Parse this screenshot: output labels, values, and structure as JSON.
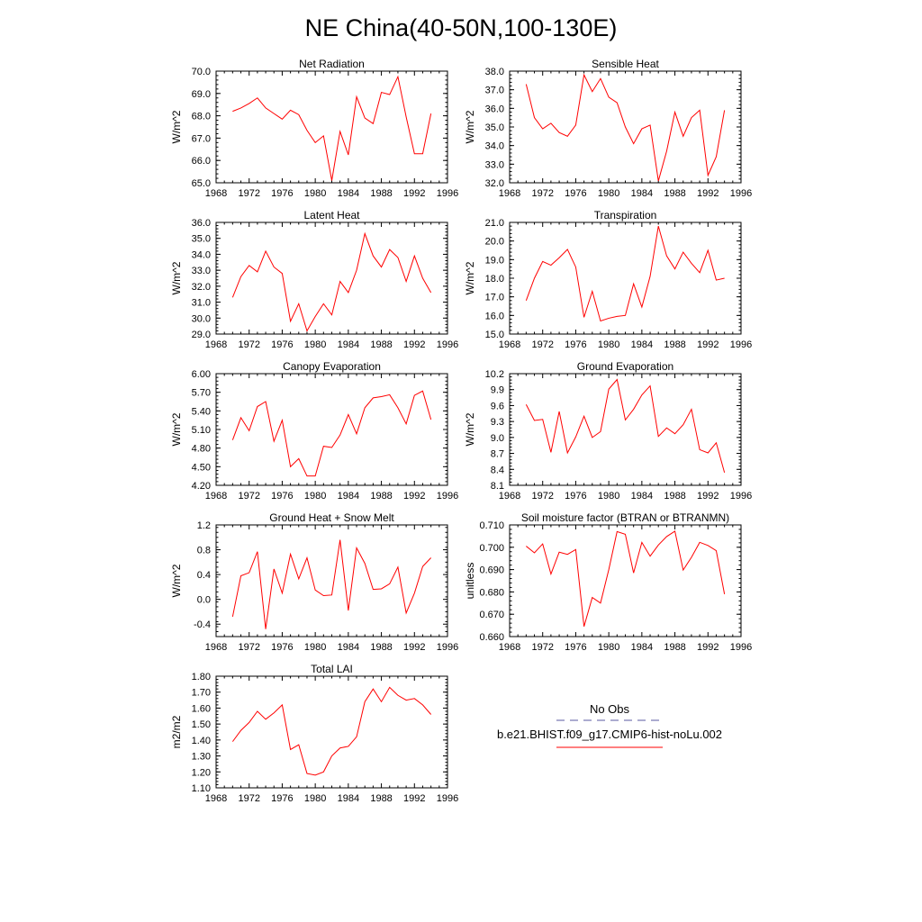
{
  "page_title": "NE China(40-50N,100-130E)",
  "colors": {
    "model_line": "#ff0000",
    "obs_line": "#5a5aa0",
    "axis": "#000000"
  },
  "legend": {
    "obs_label": "No Obs",
    "model_label": "b.e21.BHIST.f09_g17.CMIP6-hist-noLu.002"
  },
  "chart_data": [
    {
      "type": "line",
      "title": "Net Radiation",
      "ylabel": "W/m^2",
      "xlim": [
        1968,
        1996
      ],
      "xticks": [
        "1968",
        "1972",
        "1976",
        "1980",
        "1984",
        "1988",
        "1992",
        "1996"
      ],
      "ylim": [
        65.0,
        70.0
      ],
      "yticks": [
        "65.0",
        "66.0",
        "67.0",
        "68.0",
        "69.0",
        "70.0"
      ],
      "x": [
        1970,
        1971,
        1972,
        1973,
        1974,
        1975,
        1976,
        1977,
        1978,
        1979,
        1980,
        1981,
        1982,
        1983,
        1984,
        1985,
        1986,
        1987,
        1988,
        1989,
        1990,
        1991,
        1992,
        1993,
        1994
      ],
      "series": [
        {
          "name": "b.e21.BHIST.f09_g17.CMIP6-hist-noLu.002",
          "values": [
            68.2,
            68.35,
            68.55,
            68.8,
            68.35,
            68.1,
            67.85,
            68.25,
            68.05,
            67.35,
            66.8,
            67.1,
            65.1,
            67.3,
            66.25,
            68.85,
            67.9,
            67.65,
            69.05,
            68.95,
            69.75,
            67.95,
            66.3,
            66.3,
            68.1
          ]
        }
      ]
    },
    {
      "type": "line",
      "title": "Sensible Heat",
      "ylabel": "W/m^2",
      "xlim": [
        1968,
        1996
      ],
      "xticks": [
        "1968",
        "1972",
        "1976",
        "1980",
        "1984",
        "1988",
        "1992",
        "1996"
      ],
      "ylim": [
        32.0,
        38.0
      ],
      "yticks": [
        "32.0",
        "33.0",
        "34.0",
        "35.0",
        "36.0",
        "37.0",
        "38.0"
      ],
      "x": [
        1970,
        1971,
        1972,
        1973,
        1974,
        1975,
        1976,
        1977,
        1978,
        1979,
        1980,
        1981,
        1982,
        1983,
        1984,
        1985,
        1986,
        1987,
        1988,
        1989,
        1990,
        1991,
        1992,
        1993,
        1994
      ],
      "series": [
        {
          "name": "b.e21.BHIST.f09_g17.CMIP6-hist-noLu.002",
          "values": [
            37.3,
            35.5,
            34.9,
            35.2,
            34.7,
            34.5,
            35.1,
            37.8,
            36.9,
            37.6,
            36.6,
            36.3,
            35.0,
            34.1,
            34.9,
            35.1,
            32.1,
            33.7,
            35.8,
            34.5,
            35.5,
            35.9,
            32.4,
            33.4,
            35.9
          ]
        }
      ]
    },
    {
      "type": "line",
      "title": "Latent Heat",
      "ylabel": "W/m^2",
      "xlim": [
        1968,
        1996
      ],
      "xticks": [
        "1968",
        "1972",
        "1976",
        "1980",
        "1984",
        "1988",
        "1992",
        "1996"
      ],
      "ylim": [
        29.0,
        36.0
      ],
      "yticks": [
        "29.0",
        "30.0",
        "31.0",
        "32.0",
        "33.0",
        "34.0",
        "35.0",
        "36.0"
      ],
      "x": [
        1970,
        1971,
        1972,
        1973,
        1974,
        1975,
        1976,
        1977,
        1978,
        1979,
        1980,
        1981,
        1982,
        1983,
        1984,
        1985,
        1986,
        1987,
        1988,
        1989,
        1990,
        1991,
        1992,
        1993,
        1994
      ],
      "series": [
        {
          "name": "b.e21.BHIST.f09_g17.CMIP6-hist-noLu.002",
          "values": [
            31.3,
            32.6,
            33.3,
            32.9,
            34.2,
            33.2,
            32.8,
            29.8,
            30.9,
            29.2,
            30.1,
            30.9,
            30.2,
            32.3,
            31.6,
            33.0,
            35.3,
            33.9,
            33.2,
            34.3,
            33.8,
            32.3,
            33.9,
            32.5,
            31.6
          ]
        }
      ]
    },
    {
      "type": "line",
      "title": "Transpiration",
      "ylabel": "W/m^2",
      "xlim": [
        1968,
        1996
      ],
      "xticks": [
        "1968",
        "1972",
        "1976",
        "1980",
        "1984",
        "1988",
        "1992",
        "1996"
      ],
      "ylim": [
        15.0,
        21.0
      ],
      "yticks": [
        "15.0",
        "16.0",
        "17.0",
        "18.0",
        "19.0",
        "20.0",
        "21.0"
      ],
      "x": [
        1970,
        1971,
        1972,
        1973,
        1974,
        1975,
        1976,
        1977,
        1978,
        1979,
        1980,
        1981,
        1982,
        1983,
        1984,
        1985,
        1986,
        1987,
        1988,
        1989,
        1990,
        1991,
        1992,
        1993,
        1994
      ],
      "series": [
        {
          "name": "b.e21.BHIST.f09_g17.CMIP6-hist-noLu.002",
          "values": [
            16.8,
            18.0,
            18.9,
            18.7,
            19.1,
            19.55,
            18.6,
            15.9,
            17.3,
            15.7,
            15.85,
            15.95,
            16.0,
            17.7,
            16.45,
            18.1,
            20.8,
            19.2,
            18.5,
            19.4,
            18.8,
            18.3,
            19.5,
            17.9,
            18.0
          ]
        }
      ]
    },
    {
      "type": "line",
      "title": "Canopy Evaporation",
      "ylabel": "W/m^2",
      "xlim": [
        1968,
        1996
      ],
      "xticks": [
        "1968",
        "1972",
        "1976",
        "1980",
        "1984",
        "1988",
        "1992",
        "1996"
      ],
      "ylim": [
        4.2,
        6.0
      ],
      "yticks": [
        "4.20",
        "4.50",
        "4.80",
        "5.10",
        "5.40",
        "5.70",
        "6.00"
      ],
      "x": [
        1970,
        1971,
        1972,
        1973,
        1974,
        1975,
        1976,
        1977,
        1978,
        1979,
        1980,
        1981,
        1982,
        1983,
        1984,
        1985,
        1986,
        1987,
        1988,
        1989,
        1990,
        1991,
        1992,
        1993,
        1994
      ],
      "series": [
        {
          "name": "b.e21.BHIST.f09_g17.CMIP6-hist-noLu.002",
          "values": [
            4.93,
            5.29,
            5.08,
            5.47,
            5.55,
            4.91,
            5.25,
            4.5,
            4.63,
            4.35,
            4.35,
            4.83,
            4.81,
            5.01,
            5.34,
            5.03,
            5.45,
            5.61,
            5.63,
            5.66,
            5.45,
            5.19,
            5.65,
            5.72,
            5.26
          ]
        }
      ]
    },
    {
      "type": "line",
      "title": "Ground Evaporation",
      "ylabel": "W/m^2",
      "xlim": [
        1968,
        1996
      ],
      "xticks": [
        "1968",
        "1972",
        "1976",
        "1980",
        "1984",
        "1988",
        "1992",
        "1996"
      ],
      "ylim": [
        8.1,
        10.2
      ],
      "yticks": [
        "8.1",
        "8.4",
        "8.7",
        "9.0",
        "9.3",
        "9.6",
        "9.9",
        "10.2"
      ],
      "x": [
        1970,
        1971,
        1972,
        1973,
        1974,
        1975,
        1976,
        1977,
        1978,
        1979,
        1980,
        1981,
        1982,
        1983,
        1984,
        1985,
        1986,
        1987,
        1988,
        1989,
        1990,
        1991,
        1992,
        1993,
        1994
      ],
      "series": [
        {
          "name": "b.e21.BHIST.f09_g17.CMIP6-hist-noLu.002",
          "values": [
            9.62,
            9.32,
            9.34,
            8.72,
            9.49,
            8.71,
            9.01,
            9.4,
            9.0,
            9.11,
            9.91,
            10.09,
            9.33,
            9.53,
            9.8,
            9.97,
            9.02,
            9.18,
            9.07,
            9.24,
            9.53,
            8.77,
            8.71,
            8.9,
            8.34
          ]
        }
      ]
    },
    {
      "type": "line",
      "title": "Ground Heat + Snow Melt",
      "ylabel": "W/m^2",
      "xlim": [
        1968,
        1996
      ],
      "xticks": [
        "1968",
        "1972",
        "1976",
        "1980",
        "1984",
        "1988",
        "1992",
        "1996"
      ],
      "ylim": [
        -0.6,
        1.2
      ],
      "yticks": [
        "-0.4",
        "0.0",
        "0.4",
        "0.8",
        "1.2"
      ],
      "ytick_values": [
        -0.4,
        0.0,
        0.4,
        0.8,
        1.2
      ],
      "x": [
        1970,
        1971,
        1972,
        1973,
        1974,
        1975,
        1976,
        1977,
        1978,
        1979,
        1980,
        1981,
        1982,
        1983,
        1984,
        1985,
        1986,
        1987,
        1988,
        1989,
        1990,
        1991,
        1992,
        1993,
        1994
      ],
      "series": [
        {
          "name": "b.e21.BHIST.f09_g17.CMIP6-hist-noLu.002",
          "values": [
            -0.28,
            0.38,
            0.43,
            0.77,
            -0.48,
            0.49,
            0.1,
            0.73,
            0.33,
            0.67,
            0.15,
            0.06,
            0.07,
            0.96,
            -0.18,
            0.83,
            0.58,
            0.16,
            0.17,
            0.25,
            0.52,
            -0.22,
            0.1,
            0.53,
            0.67
          ]
        }
      ]
    },
    {
      "type": "line",
      "title": "Soil moisture factor (BTRAN or BTRANMN)",
      "ylabel": "unitless",
      "xlim": [
        1968,
        1996
      ],
      "xticks": [
        "1968",
        "1972",
        "1976",
        "1980",
        "1984",
        "1988",
        "1992",
        "1996"
      ],
      "ylim": [
        0.66,
        0.71
      ],
      "yticks": [
        "0.660",
        "0.670",
        "0.680",
        "0.690",
        "0.700",
        "0.710"
      ],
      "x": [
        1970,
        1971,
        1972,
        1973,
        1974,
        1975,
        1976,
        1977,
        1978,
        1979,
        1980,
        1981,
        1982,
        1983,
        1984,
        1985,
        1986,
        1987,
        1988,
        1989,
        1990,
        1991,
        1992,
        1993,
        1994
      ],
      "series": [
        {
          "name": "b.e21.BHIST.f09_g17.CMIP6-hist-noLu.002",
          "values": [
            0.7005,
            0.6975,
            0.7015,
            0.688,
            0.6978,
            0.6968,
            0.699,
            0.6645,
            0.6775,
            0.675,
            0.69,
            0.707,
            0.7058,
            0.6885,
            0.7022,
            0.696,
            0.701,
            0.7048,
            0.7072,
            0.6898,
            0.6955,
            0.7022,
            0.7008,
            0.6985,
            0.679
          ]
        }
      ]
    },
    {
      "type": "line",
      "title": "Total LAI",
      "ylabel": "m2/m2",
      "xlim": [
        1968,
        1996
      ],
      "xticks": [
        "1968",
        "1972",
        "1976",
        "1980",
        "1984",
        "1988",
        "1992",
        "1996"
      ],
      "ylim": [
        1.1,
        1.8
      ],
      "yticks": [
        "1.10",
        "1.20",
        "1.30",
        "1.40",
        "1.50",
        "1.60",
        "1.70",
        "1.80"
      ],
      "x": [
        1970,
        1971,
        1972,
        1973,
        1974,
        1975,
        1976,
        1977,
        1978,
        1979,
        1980,
        1981,
        1982,
        1983,
        1984,
        1985,
        1986,
        1987,
        1988,
        1989,
        1990,
        1991,
        1992,
        1993,
        1994
      ],
      "series": [
        {
          "name": "b.e21.BHIST.f09_g17.CMIP6-hist-noLu.002",
          "values": [
            1.39,
            1.46,
            1.51,
            1.58,
            1.53,
            1.57,
            1.62,
            1.34,
            1.37,
            1.19,
            1.18,
            1.2,
            1.3,
            1.35,
            1.36,
            1.42,
            1.64,
            1.72,
            1.64,
            1.73,
            1.68,
            1.65,
            1.66,
            1.62,
            1.56
          ]
        }
      ]
    }
  ]
}
